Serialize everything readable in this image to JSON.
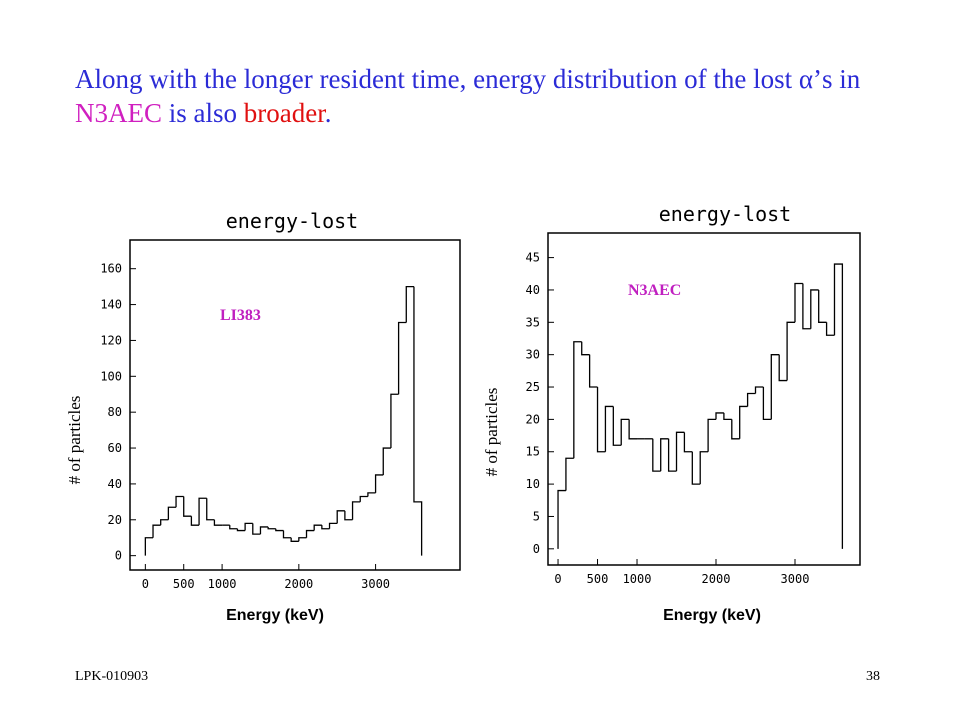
{
  "heading": [
    "Along with the longer resident time, energy distribution of the lost ",
    "α",
    "’s in ",
    "N3AEC",
    " is also ",
    "broader",
    "."
  ],
  "heading_colors": [
    "#2b2bd6",
    "#2b2bd6",
    "#2b2bd6",
    "#d020c0",
    "#2b2bd6",
    "#e01010",
    "#2b2bd6"
  ],
  "footer_left": "LPK-010903",
  "footer_right": "38",
  "chart_data": [
    {
      "type": "histogram",
      "title": "energy-lost",
      "annotation": "LI383",
      "annotation_color": "#c020c0",
      "xlabel": "Energy (keV)",
      "ylabel": "# of particles",
      "color": "#000000",
      "bins": [
        0,
        100,
        200,
        300,
        400,
        500,
        600,
        700,
        800,
        900,
        1000,
        1100,
        1200,
        1300,
        1400,
        1500,
        1600,
        1700,
        1800,
        1900,
        2000,
        2100,
        2200,
        2300,
        2400,
        2500,
        2600,
        2700,
        2800,
        2900,
        3000,
        3100,
        3200,
        3300,
        3400,
        3500,
        3600
      ],
      "counts": [
        10,
        17,
        20,
        27,
        33,
        22,
        17,
        32,
        20,
        17,
        17,
        15,
        14,
        18,
        12,
        16,
        15,
        14,
        10,
        8,
        10,
        14,
        17,
        15,
        18,
        25,
        20,
        30,
        33,
        35,
        45,
        60,
        90,
        130,
        150,
        30
      ],
      "xlim": [
        -200,
        4100
      ],
      "ylim": [
        -8,
        176
      ],
      "xticks": [
        0,
        500,
        1000,
        2000,
        3000
      ],
      "yticks": [
        0,
        20,
        40,
        60,
        80,
        100,
        120,
        140,
        160
      ]
    },
    {
      "type": "histogram",
      "title": "energy-lost",
      "annotation": "N3AEC",
      "annotation_color": "#c020c0",
      "xlabel": "Energy (keV)",
      "ylabel": "# of particles",
      "color": "#000000",
      "bins": [
        0,
        100,
        200,
        300,
        400,
        500,
        600,
        700,
        800,
        900,
        1000,
        1100,
        1200,
        1300,
        1400,
        1500,
        1600,
        1700,
        1800,
        1900,
        2000,
        2100,
        2200,
        2300,
        2400,
        2500,
        2600,
        2700,
        2800,
        2900,
        3000,
        3100,
        3200,
        3300,
        3400,
        3500,
        3600
      ],
      "counts": [
        9,
        14,
        32,
        30,
        25,
        15,
        22,
        16,
        20,
        17,
        17,
        17,
        12,
        17,
        12,
        18,
        15,
        10,
        15,
        20,
        21,
        20,
        17,
        22,
        24,
        25,
        20,
        30,
        26,
        35,
        41,
        34,
        40,
        35,
        33,
        44
      ],
      "xlim": [
        -127,
        3823
      ],
      "ylim": [
        -2.5,
        48.8
      ],
      "xticks": [
        0,
        500,
        1000,
        2000,
        3000
      ],
      "yticks": [
        0,
        5,
        10,
        15,
        20,
        25,
        30,
        35,
        40,
        45
      ]
    }
  ]
}
